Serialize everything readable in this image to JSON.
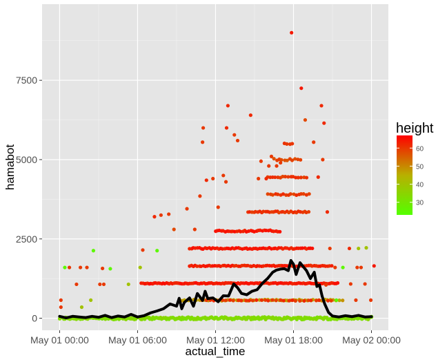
{
  "chart_data": {
    "type": "scatter",
    "xlabel": "actual_time",
    "ylabel": "hamabot",
    "x_ticks": [
      "May 01 00:00",
      "May 01 06:00",
      "May 01 12:00",
      "May 01 18:00",
      "May 02 00:00"
    ],
    "x_tick_hours": [
      0,
      6,
      12,
      18,
      24
    ],
    "y_ticks": [
      0,
      2500,
      5000,
      7500
    ],
    "xlim_hours": [
      -1.35,
      25.3
    ],
    "ylim": [
      -380,
      9900
    ],
    "grid": true,
    "panel_background": "#e5e5e5",
    "line_color": "#000000",
    "legend": {
      "title": "height",
      "position": "right",
      "ticks": [
        30,
        40,
        50,
        60
      ],
      "range": [
        23,
        67
      ],
      "colors": {
        "low": "#54ff00",
        "mid": "#b8b000",
        "high": "#ff0000"
      }
    },
    "series": [
      {
        "type": "scatter",
        "color_by": "height",
        "bands": [
          {
            "y": 0,
            "x_from": 0,
            "x_to": 24,
            "step": 0.08,
            "height": 33,
            "jitter_y": 40
          },
          {
            "y": 570,
            "x_from": 9.2,
            "x_to": 21.8,
            "step": 0.22,
            "height": 47,
            "jitter_y": 20
          },
          {
            "y": 560,
            "x_from": 11,
            "x_to": 21,
            "step": 0.3,
            "height": 61,
            "jitter_y": 15
          },
          {
            "y": 1100,
            "x_from": 6.3,
            "x_to": 21.5,
            "step": 0.12,
            "height": 64,
            "jitter_y": 15
          },
          {
            "y": 1650,
            "x_from": 10,
            "x_to": 21,
            "step": 0.15,
            "height": 63,
            "jitter_y": 15
          },
          {
            "y": 2200,
            "x_from": 10,
            "x_to": 19.5,
            "step": 0.15,
            "height": 64,
            "jitter_y": 20
          },
          {
            "y": 2750,
            "x_from": 12,
            "x_to": 17,
            "step": 0.15,
            "height": 64,
            "jitter_y": 25
          },
          {
            "y": 3350,
            "x_from": 14.5,
            "x_to": 19.2,
            "step": 0.15,
            "height": 61,
            "jitter_y": 20
          },
          {
            "y": 3900,
            "x_from": 16,
            "x_to": 19.2,
            "step": 0.2,
            "height": 60,
            "jitter_y": 20
          },
          {
            "y": 4450,
            "x_from": 16,
            "x_to": 19,
            "step": 0.2,
            "height": 60,
            "jitter_y": 20
          },
          {
            "y": 5000,
            "x_from": 16.5,
            "x_to": 18.5,
            "step": 0.2,
            "height": 58,
            "jitter_y": 30
          },
          {
            "y": 5500,
            "x_from": 17.3,
            "x_to": 18,
            "step": 0.2,
            "height": 60,
            "jitter_y": 15
          }
        ],
        "points": [
          [
            0.1,
            350,
            60
          ],
          [
            0.1,
            570,
            60
          ],
          [
            0.4,
            1600,
            25
          ],
          [
            0.75,
            1600,
            60
          ],
          [
            1.3,
            1070,
            60
          ],
          [
            1.6,
            1600,
            60
          ],
          [
            1.7,
            350,
            40
          ],
          [
            2.1,
            1600,
            60
          ],
          [
            2.4,
            570,
            40
          ],
          [
            2.6,
            2130,
            25
          ],
          [
            3.3,
            1570,
            60
          ],
          [
            3.1,
            1070,
            60
          ],
          [
            3.4,
            1070,
            60
          ],
          [
            3.9,
            1560,
            25
          ],
          [
            5.3,
            1070,
            40
          ],
          [
            6.4,
            2150,
            60
          ],
          [
            6.2,
            1600,
            40
          ],
          [
            7.3,
            3200,
            62
          ],
          [
            7.5,
            2130,
            25
          ],
          [
            7.8,
            3250,
            60
          ],
          [
            8.4,
            3280,
            60
          ],
          [
            8.8,
            2800,
            58
          ],
          [
            9.8,
            3450,
            60
          ],
          [
            10.4,
            2800,
            60
          ],
          [
            10.8,
            3850,
            60
          ],
          [
            11.3,
            4350,
            62
          ],
          [
            11.8,
            4400,
            60
          ],
          [
            12.6,
            4500,
            60
          ],
          [
            12.2,
            3500,
            60
          ],
          [
            12.8,
            4300,
            60
          ],
          [
            11.0,
            5550,
            60
          ],
          [
            11.05,
            6000,
            60
          ],
          [
            12.85,
            6000,
            62
          ],
          [
            13.45,
            5780,
            60
          ],
          [
            13.7,
            5600,
            60
          ],
          [
            12.95,
            6700,
            62
          ],
          [
            14.7,
            6400,
            62
          ],
          [
            16.3,
            5100,
            60
          ],
          [
            17.0,
            4900,
            60
          ],
          [
            16.7,
            4800,
            60
          ],
          [
            16.1,
            4800,
            60
          ],
          [
            15.5,
            4950,
            60
          ],
          [
            15.9,
            4400,
            62
          ],
          [
            15.3,
            4400,
            60
          ],
          [
            17.85,
            9000,
            64
          ],
          [
            18.6,
            7250,
            64
          ],
          [
            18.9,
            6250,
            58
          ],
          [
            19.55,
            5550,
            60
          ],
          [
            20.15,
            6700,
            62
          ],
          [
            20.35,
            6150,
            62
          ],
          [
            20.25,
            5000,
            60
          ],
          [
            19.9,
            4450,
            62
          ],
          [
            20.6,
            3350,
            62
          ],
          [
            20.8,
            2200,
            60
          ],
          [
            20.5,
            1050,
            60
          ],
          [
            21.8,
            1600,
            25
          ],
          [
            21.3,
            570,
            25
          ],
          [
            22.4,
            1080,
            60
          ],
          [
            22.3,
            2200,
            62
          ],
          [
            22.9,
            1600,
            60
          ],
          [
            23.0,
            2200,
            40
          ],
          [
            23.2,
            1600,
            60
          ],
          [
            23.6,
            2220,
            40
          ],
          [
            23.5,
            1080,
            60
          ],
          [
            23.95,
            570,
            60
          ],
          [
            24.2,
            1650,
            64
          ],
          [
            22.8,
            570,
            60
          ],
          [
            21.2,
            1600,
            60
          ],
          [
            24.0,
            50,
            30
          ]
        ]
      },
      {
        "type": "line",
        "line": [
          [
            0.0,
            60
          ],
          [
            0.5,
            10
          ],
          [
            1.0,
            60
          ],
          [
            1.5,
            40
          ],
          [
            2.0,
            20
          ],
          [
            2.5,
            60
          ],
          [
            3.0,
            30
          ],
          [
            3.5,
            90
          ],
          [
            4.0,
            20
          ],
          [
            4.5,
            70
          ],
          [
            5.0,
            40
          ],
          [
            5.5,
            120
          ],
          [
            6.0,
            40
          ],
          [
            6.5,
            80
          ],
          [
            7.0,
            170
          ],
          [
            7.5,
            230
          ],
          [
            8.0,
            300
          ],
          [
            8.5,
            450
          ],
          [
            9.0,
            380
          ],
          [
            9.2,
            630
          ],
          [
            9.4,
            300
          ],
          [
            9.6,
            500
          ],
          [
            10.0,
            640
          ],
          [
            10.3,
            380
          ],
          [
            10.6,
            780
          ],
          [
            11.0,
            560
          ],
          [
            11.2,
            850
          ],
          [
            11.4,
            620
          ],
          [
            11.8,
            640
          ],
          [
            12.2,
            520
          ],
          [
            12.6,
            710
          ],
          [
            13.0,
            700
          ],
          [
            13.4,
            1080
          ],
          [
            13.7,
            960
          ],
          [
            14.0,
            780
          ],
          [
            14.4,
            740
          ],
          [
            14.8,
            850
          ],
          [
            15.2,
            900
          ],
          [
            15.6,
            1100
          ],
          [
            16.0,
            1250
          ],
          [
            16.4,
            1450
          ],
          [
            16.7,
            1520
          ],
          [
            17.0,
            1550
          ],
          [
            17.3,
            1560
          ],
          [
            17.6,
            1500
          ],
          [
            17.8,
            1820
          ],
          [
            18.0,
            1700
          ],
          [
            18.2,
            1380
          ],
          [
            18.5,
            1750
          ],
          [
            18.8,
            1600
          ],
          [
            19.0,
            1500
          ],
          [
            19.3,
            1250
          ],
          [
            19.6,
            1450
          ],
          [
            19.8,
            1000
          ],
          [
            20.0,
            1050
          ],
          [
            20.2,
            700
          ],
          [
            20.4,
            450
          ],
          [
            20.7,
            180
          ],
          [
            21.0,
            70
          ],
          [
            21.5,
            40
          ],
          [
            22.0,
            80
          ],
          [
            22.5,
            50
          ],
          [
            23.0,
            90
          ],
          [
            23.5,
            40
          ],
          [
            24.0,
            50
          ]
        ]
      }
    ]
  }
}
